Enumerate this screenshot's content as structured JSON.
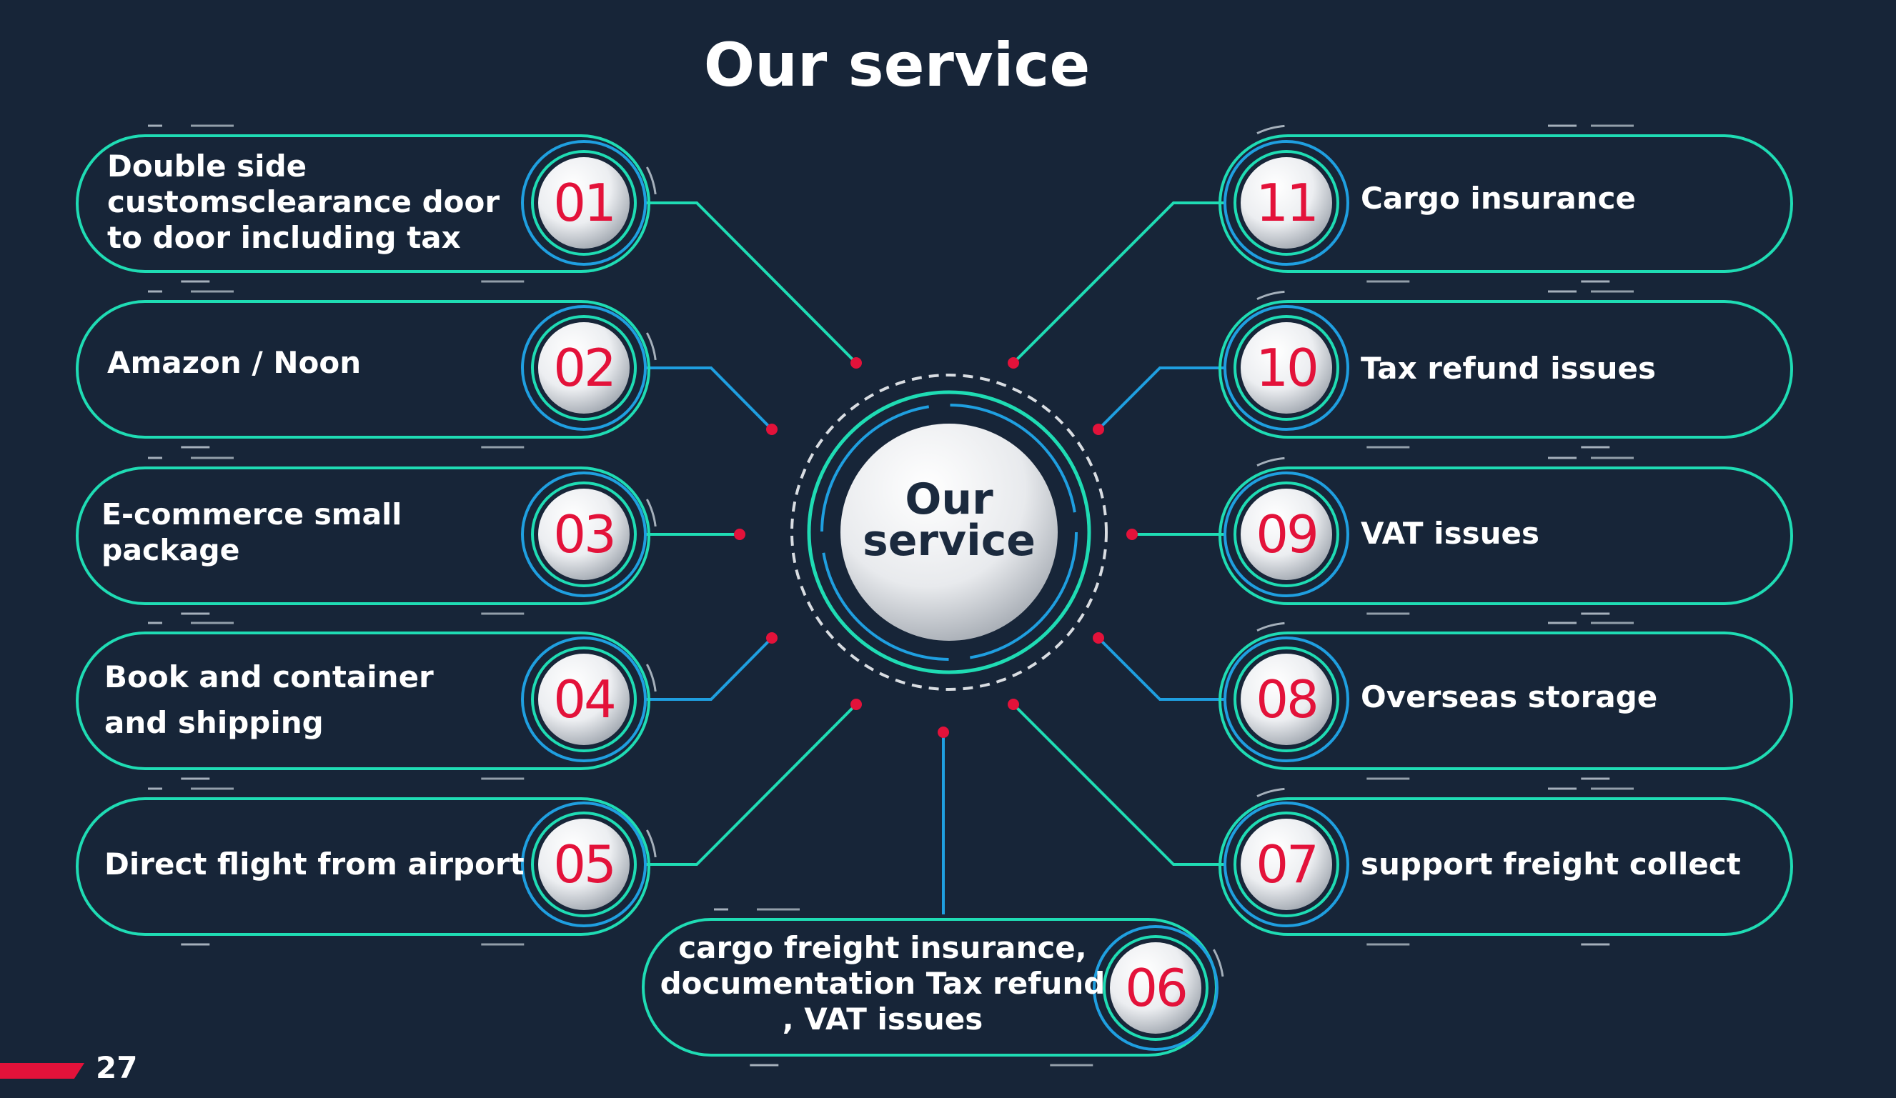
{
  "title": "Our service",
  "center": {
    "line1": "Our",
    "line2": "service"
  },
  "services": [
    {
      "number": "01",
      "label": "Double side customsclearance door to door including tax"
    },
    {
      "number": "02",
      "label": "Amazon / Noon"
    },
    {
      "number": "03",
      "label": "E-commerce small package"
    },
    {
      "number": "04",
      "label": "Book and container and shipping"
    },
    {
      "number": "05",
      "label": "Direct flight from airport"
    },
    {
      "number": "06",
      "label": "cargo freight insurance, documentation Tax refund , VAT issues"
    },
    {
      "number": "07",
      "label": "support freight collect"
    },
    {
      "number": "08",
      "label": "Overseas storage"
    },
    {
      "number": "09",
      "label": "VAT issues"
    },
    {
      "number": "10",
      "label": "Tax refund issues"
    },
    {
      "number": "11",
      "label": "Cargo insurance"
    }
  ],
  "page_number": "27",
  "colors": {
    "background": "#172538",
    "teal": "#1fdcb4",
    "blue": "#1f9fe0",
    "accent_red": "#e3123a",
    "text": "#ffffff"
  }
}
